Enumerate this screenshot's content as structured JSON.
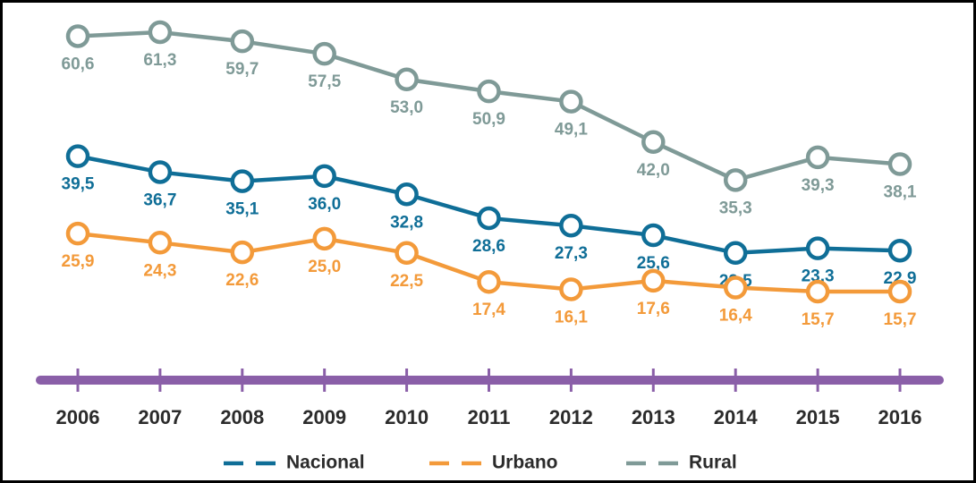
{
  "chart_data": {
    "type": "line",
    "categories": [
      "2006",
      "2007",
      "2008",
      "2009",
      "2010",
      "2011",
      "2012",
      "2013",
      "2014",
      "2015",
      "2016"
    ],
    "series": [
      {
        "name": "Nacional",
        "color": "#0f6e97",
        "values": [
          39.5,
          36.7,
          35.1,
          36.0,
          32.8,
          28.6,
          27.3,
          25.6,
          22.5,
          23.3,
          22.9
        ],
        "value_labels": [
          "39,5",
          "36,7",
          "35,1",
          "36,0",
          "32,8",
          "28,6",
          "27,3",
          "25,6",
          "22,5",
          "23,3",
          "22,9"
        ]
      },
      {
        "name": "Urbano",
        "color": "#f39a3a",
        "values": [
          25.9,
          24.3,
          22.6,
          25.0,
          22.5,
          17.4,
          16.1,
          17.6,
          16.4,
          15.7,
          15.7
        ],
        "value_labels": [
          "25,9",
          "24,3",
          "22,6",
          "25,0",
          "22,5",
          "17,4",
          "16,1",
          "17,6",
          "16,4",
          "15,7",
          "15,7"
        ]
      },
      {
        "name": "Rural",
        "color": "#7f9a97",
        "values": [
          60.6,
          61.3,
          59.7,
          57.5,
          53.0,
          50.9,
          49.1,
          42.0,
          35.3,
          39.3,
          38.1
        ],
        "value_labels": [
          "60,6",
          "61,3",
          "59,7",
          "57,5",
          "53,0",
          "50,9",
          "49,1",
          "42,0",
          "35,3",
          "39,3",
          "38,1"
        ]
      }
    ],
    "axis_color": "#8a5fa8"
  }
}
